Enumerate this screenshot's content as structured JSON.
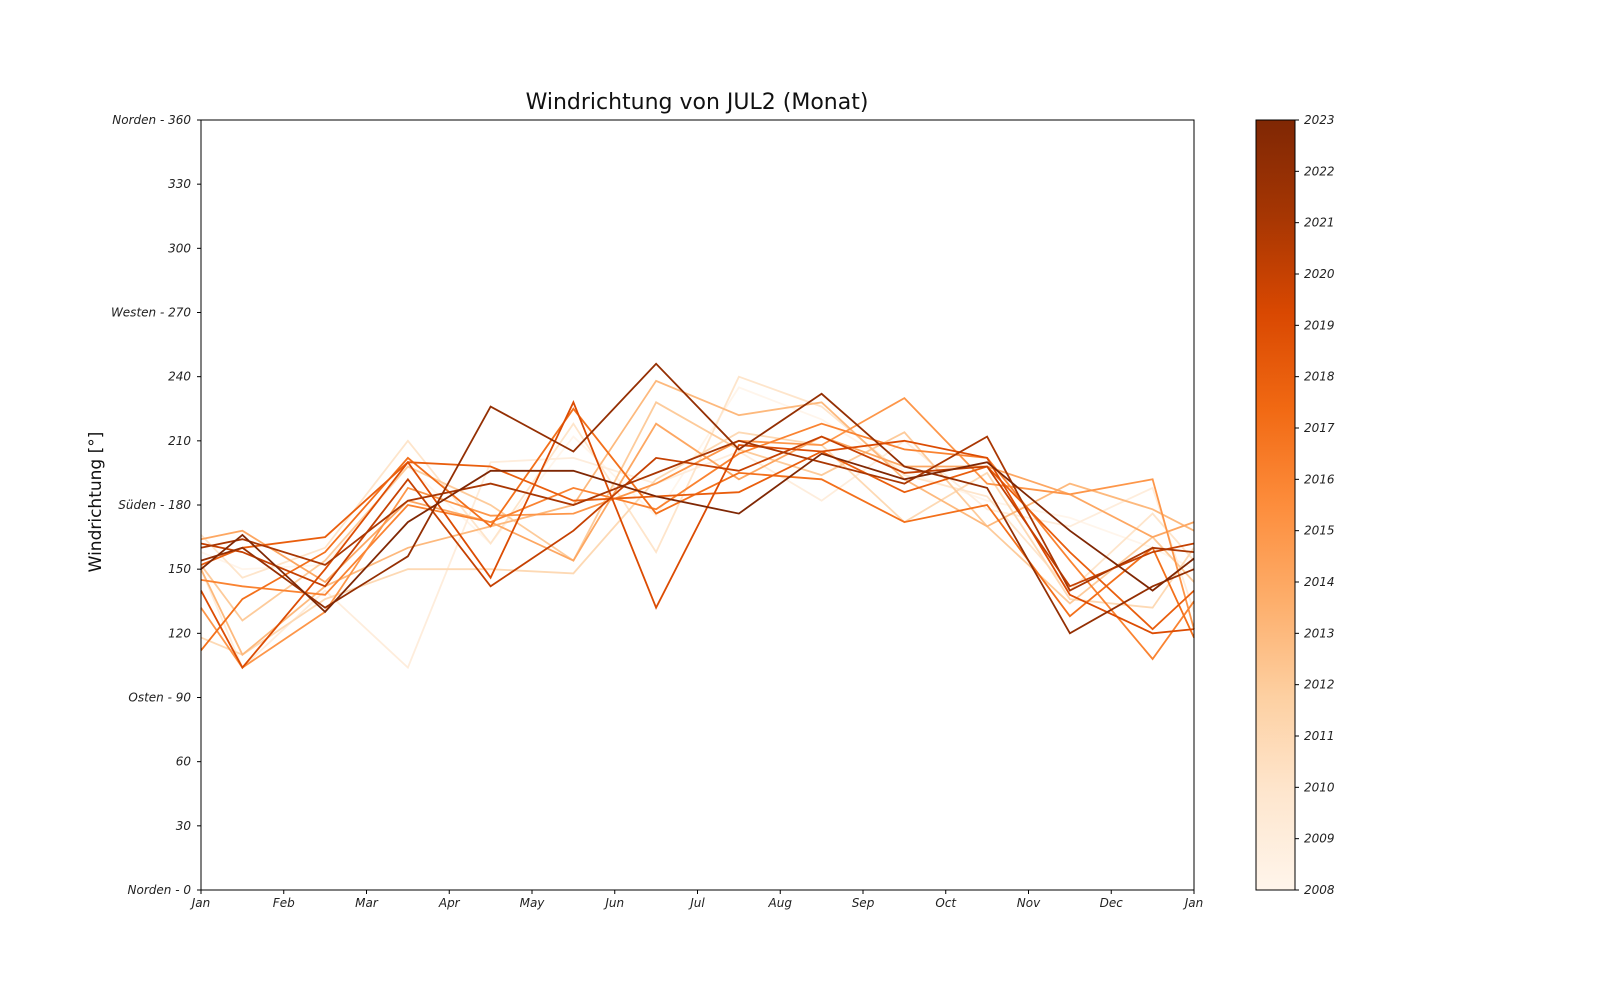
{
  "chart_data": {
    "type": "line",
    "title": "Windrichtung von JUL2 (Monat)",
    "xlabel": "",
    "ylabel": "Windrichtung [°]",
    "x_tick_labels": [
      "Jan",
      "Feb",
      "Mar",
      "Apr",
      "May",
      "Jun",
      "Jul",
      "Aug",
      "Sep",
      "Oct",
      "Nov",
      "Dec",
      "Jan"
    ],
    "x_tick_months": [
      0,
      1,
      2,
      3,
      4,
      5,
      6,
      7,
      8,
      9,
      10,
      11,
      12
    ],
    "x_points": [
      0,
      0.5,
      1.5,
      2.5,
      3.5,
      4.5,
      5.5,
      6.5,
      7.5,
      8.5,
      9.5,
      10.5,
      11.5,
      12
    ],
    "ylim": [
      0,
      360
    ],
    "y_ticks": [
      {
        "value": 0,
        "label": "Norden - 0"
      },
      {
        "value": 30,
        "label": "30"
      },
      {
        "value": 60,
        "label": "60"
      },
      {
        "value": 90,
        "label": "Osten - 90"
      },
      {
        "value": 120,
        "label": "120"
      },
      {
        "value": 150,
        "label": "150"
      },
      {
        "value": 180,
        "label": "Süden - 180"
      },
      {
        "value": 210,
        "label": "210"
      },
      {
        "value": 240,
        "label": "240"
      },
      {
        "value": 270,
        "label": "Westen - 270"
      },
      {
        "value": 300,
        "label": "300"
      },
      {
        "value": 330,
        "label": "330"
      },
      {
        "value": 360,
        "label": "Norden - 360"
      }
    ],
    "grid": false,
    "legend": "none",
    "colorbar": {
      "min": 2008,
      "max": 2023,
      "ticks": [
        {
          "value": 2008,
          "label": "2008"
        },
        {
          "value": 2009,
          "label": "2009"
        },
        {
          "value": 2010,
          "label": "2010"
        },
        {
          "value": 2011,
          "label": "2011"
        },
        {
          "value": 2012,
          "label": "2012"
        },
        {
          "value": 2013,
          "label": "2013"
        },
        {
          "value": 2014,
          "label": "2014"
        },
        {
          "value": 2015,
          "label": "2015"
        },
        {
          "value": 2016,
          "label": "2016"
        },
        {
          "value": 2017,
          "label": "2017"
        },
        {
          "value": 2018,
          "label": "2018"
        },
        {
          "value": 2019,
          "label": "2019"
        },
        {
          "value": 2020,
          "label": "2020"
        },
        {
          "value": 2021,
          "label": "2021"
        },
        {
          "value": 2022,
          "label": "2022"
        },
        {
          "value": 2023,
          "label": "2023"
        }
      ],
      "colormap_stops": [
        "#fff5eb",
        "#fee6ce",
        "#fdd0a2",
        "#fdae6b",
        "#fd8d3c",
        "#f16913",
        "#d94801",
        "#a63603",
        "#7f2704"
      ]
    },
    "series": [
      {
        "year": 2008,
        "values": [
          158,
          150,
          152,
          198,
          162,
          212,
          175,
          235,
          220,
          196,
          182,
          174,
          160,
          150
        ]
      },
      {
        "year": 2009,
        "values": [
          150,
          104,
          140,
          104,
          200,
          202,
          190,
          205,
          182,
          210,
          178,
          170,
          188,
          130
        ]
      },
      {
        "year": 2010,
        "values": [
          166,
          146,
          160,
          210,
          162,
          218,
          158,
          240,
          226,
          194,
          184,
          140,
          176,
          154
        ]
      },
      {
        "year": 2011,
        "values": [
          118,
          110,
          136,
          150,
          150,
          148,
          192,
          214,
          208,
          172,
          195,
          136,
          132,
          160
        ]
      },
      {
        "year": 2012,
        "values": [
          152,
          126,
          154,
          198,
          180,
          154,
          228,
          206,
          194,
          214,
          170,
          134,
          165,
          144
        ]
      },
      {
        "year": 2013,
        "values": [
          150,
          110,
          142,
          160,
          170,
          180,
          238,
          222,
          228,
          192,
          170,
          190,
          178,
          168
        ]
      },
      {
        "year": 2014,
        "values": [
          164,
          168,
          144,
          182,
          172,
          154,
          218,
          192,
          212,
          198,
          198,
          185,
          165,
          172
        ]
      },
      {
        "year": 2015,
        "values": [
          132,
          104,
          130,
          188,
          175,
          176,
          190,
          210,
          208,
          230,
          190,
          185,
          192,
          122
        ]
      },
      {
        "year": 2016,
        "values": [
          145,
          142,
          138,
          180,
          172,
          188,
          178,
          204,
          218,
          206,
          202,
          154,
          108,
          135
        ]
      },
      {
        "year": 2017,
        "values": [
          112,
          136,
          158,
          202,
          170,
          225,
          176,
          195,
          192,
          172,
          180,
          128,
          160,
          118
        ]
      },
      {
        "year": 2018,
        "values": [
          152,
          160,
          165,
          200,
          198,
          182,
          184,
          186,
          205,
          186,
          198,
          158,
          122,
          140
        ]
      },
      {
        "year": 2019,
        "values": [
          140,
          104,
          150,
          200,
          146,
          228,
          132,
          208,
          205,
          210,
          202,
          138,
          120,
          122
        ]
      },
      {
        "year": 2020,
        "values": [
          162,
          158,
          142,
          192,
          142,
          168,
          202,
          196,
          212,
          195,
          198,
          142,
          158,
          162
        ]
      },
      {
        "year": 2021,
        "values": [
          160,
          164,
          152,
          182,
          190,
          180,
          195,
          210,
          200,
          190,
          212,
          140,
          160,
          158
        ]
      },
      {
        "year": 2022,
        "values": [
          154,
          160,
          132,
          156,
          226,
          205,
          246,
          206,
          232,
          198,
          188,
          120,
          142,
          150
        ]
      },
      {
        "year": 2023,
        "values": [
          150,
          166,
          130,
          172,
          196,
          196,
          184,
          176,
          204,
          192,
          200,
          168,
          140,
          155
        ]
      }
    ]
  }
}
